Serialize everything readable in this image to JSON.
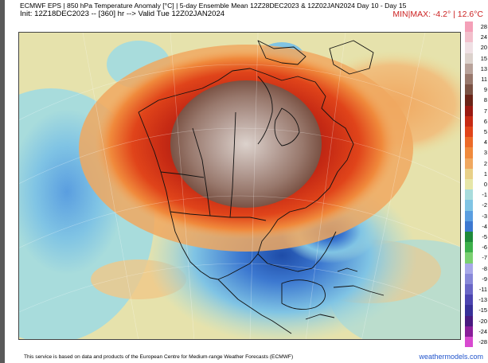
{
  "header": {
    "title": "ECMWF EPS | 850 hPa Temperature Anomaly [°C] | 5-day Ensemble Mean 12Z28DEC2023 & 12Z02JAN2024   Day 10 - Day 15",
    "init": "Init: 12Z18DEC2023 -- [360] hr --> Valid Tue 12Z02JAN2024",
    "minmax": "MIN|MAX: -4.2° | 12.6°C"
  },
  "colorbar": {
    "levels": [
      {
        "label": "28",
        "color": "#f4a0b8"
      },
      {
        "label": "24",
        "color": "#f2c0cc"
      },
      {
        "label": "20",
        "color": "#efe0e4"
      },
      {
        "label": "15",
        "color": "#dcd2cc"
      },
      {
        "label": "13",
        "color": "#b8a29a"
      },
      {
        "label": "11",
        "color": "#98786c"
      },
      {
        "label": "9",
        "color": "#7a5244"
      },
      {
        "label": "8",
        "color": "#6a2418"
      },
      {
        "label": "7",
        "color": "#9a1a12"
      },
      {
        "label": "6",
        "color": "#c62a14"
      },
      {
        "label": "5",
        "color": "#e0441a"
      },
      {
        "label": "4",
        "color": "#ec6a28"
      },
      {
        "label": "3",
        "color": "#f08a3c"
      },
      {
        "label": "2",
        "color": "#f0a860"
      },
      {
        "label": "1",
        "color": "#e8d088"
      },
      {
        "label": "0",
        "color": "#e6e6a8"
      },
      {
        "label": "-1",
        "color": "#a8dcdc"
      },
      {
        "label": "-2",
        "color": "#80c4e4"
      },
      {
        "label": "-3",
        "color": "#5a9ee0"
      },
      {
        "label": "-4",
        "color": "#3c78d0"
      },
      {
        "label": "-5",
        "color": "#1e8a3a"
      },
      {
        "label": "-6",
        "color": "#3cb04a"
      },
      {
        "label": "-7",
        "color": "#7ad070"
      },
      {
        "label": "-8",
        "color": "#a8a8e8"
      },
      {
        "label": "-9",
        "color": "#8888d8"
      },
      {
        "label": "-11",
        "color": "#6a66c6"
      },
      {
        "label": "-13",
        "color": "#4c44b0"
      },
      {
        "label": "-15",
        "color": "#383098"
      },
      {
        "label": "-20",
        "color": "#4a1a80"
      },
      {
        "label": "-24",
        "color": "#8a1e9a"
      },
      {
        "label": "-28",
        "color": "#d84ad0"
      }
    ]
  },
  "footer": {
    "attribution": "This service is based on data and products of the European Centre for Medium-range Weather Forecasts (ECMWF)",
    "brand": "weathermodels.com"
  }
}
